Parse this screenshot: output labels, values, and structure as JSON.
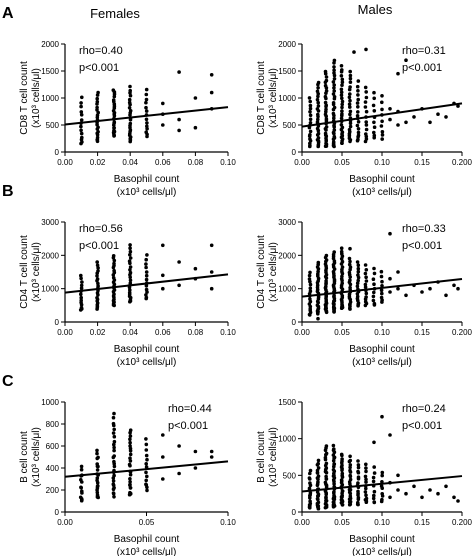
{
  "figure": {
    "column_titles": [
      "Females",
      "Males"
    ],
    "row_labels": [
      "A",
      "B",
      "C"
    ]
  },
  "chart_data": [
    {
      "id": "A-females",
      "type": "scatter",
      "row": "A",
      "col": 0,
      "ylabel": [
        "CD8 T cell count",
        "(x10³ cells/μl)"
      ],
      "xlabel": [
        "Basophil count",
        "(x10³ cells/μl)"
      ],
      "xlim": [
        0,
        0.1
      ],
      "ylim": [
        0,
        2000
      ],
      "xticks": [
        0,
        0.02,
        0.04,
        0.06,
        0.08,
        0.1
      ],
      "xtick_labels": [
        "0.00",
        "0.02",
        "0.04",
        "0.06",
        "0.08",
        "0.10"
      ],
      "yticks": [
        0,
        500,
        1000,
        1500,
        2000
      ],
      "ytick_labels": [
        "0",
        "500",
        "1000",
        "1500",
        "2000"
      ],
      "annotation": [
        "rho=0.40",
        "p<0.001"
      ],
      "annotation_pos": "top-left",
      "regression": {
        "x": [
          0,
          0.1
        ],
        "y": [
          510,
          830
        ]
      },
      "points": {
        "clusters": [
          {
            "x": 0.01,
            "ymin": 150,
            "ymax": 1000,
            "n": 14
          },
          {
            "x": 0.02,
            "ymin": 200,
            "ymax": 1100,
            "n": 22
          },
          {
            "x": 0.03,
            "ymin": 300,
            "ymax": 1150,
            "n": 26
          },
          {
            "x": 0.04,
            "ymin": 200,
            "ymax": 1200,
            "n": 24
          },
          {
            "x": 0.05,
            "ymin": 300,
            "ymax": 1150,
            "n": 14
          }
        ],
        "extra": [
          [
            0.06,
            500
          ],
          [
            0.06,
            700
          ],
          [
            0.06,
            900
          ],
          [
            0.07,
            400
          ],
          [
            0.07,
            600
          ],
          [
            0.07,
            1480
          ],
          [
            0.08,
            450
          ],
          [
            0.08,
            1000
          ],
          [
            0.09,
            1430
          ],
          [
            0.09,
            1100
          ],
          [
            0.09,
            800
          ]
        ]
      }
    },
    {
      "id": "A-males",
      "type": "scatter",
      "row": "A",
      "col": 1,
      "ylabel": [
        "CD8 T cell count",
        "(x10³ cells/μl)"
      ],
      "xlabel": [
        "Basophil count",
        "(x10³ cells/μl)"
      ],
      "xlim": [
        0,
        0.2
      ],
      "ylim": [
        0,
        2000
      ],
      "xticks": [
        0,
        0.05,
        0.1,
        0.15,
        0.2
      ],
      "xtick_labels": [
        "0.00",
        "0.05",
        "0.10",
        "0.15",
        "0.200"
      ],
      "yticks": [
        0,
        500,
        1000,
        1500,
        2000
      ],
      "ytick_labels": [
        "0",
        "500",
        "1000",
        "1500",
        "2000"
      ],
      "annotation": [
        "rho=0.31",
        "p<0.001"
      ],
      "annotation_pos": "top-right",
      "regression": {
        "x": [
          0,
          0.2
        ],
        "y": [
          470,
          900
        ]
      },
      "points": {
        "clusters": [
          {
            "x": 0.01,
            "ymin": 100,
            "ymax": 1000,
            "n": 18
          },
          {
            "x": 0.02,
            "ymin": 100,
            "ymax": 1300,
            "n": 28
          },
          {
            "x": 0.03,
            "ymin": 100,
            "ymax": 1500,
            "n": 34
          },
          {
            "x": 0.04,
            "ymin": 100,
            "ymax": 1700,
            "n": 36
          },
          {
            "x": 0.05,
            "ymin": 150,
            "ymax": 1600,
            "n": 30
          },
          {
            "x": 0.06,
            "ymin": 200,
            "ymax": 1500,
            "n": 24
          },
          {
            "x": 0.07,
            "ymin": 200,
            "ymax": 1300,
            "n": 18
          },
          {
            "x": 0.08,
            "ymin": 200,
            "ymax": 1200,
            "n": 14
          },
          {
            "x": 0.09,
            "ymin": 250,
            "ymax": 1100,
            "n": 10
          },
          {
            "x": 0.1,
            "ymin": 250,
            "ymax": 1050,
            "n": 9
          }
        ],
        "extra": [
          [
            0.11,
            600
          ],
          [
            0.11,
            800
          ],
          [
            0.12,
            500
          ],
          [
            0.12,
            750
          ],
          [
            0.13,
            550
          ],
          [
            0.14,
            650
          ],
          [
            0.15,
            800
          ],
          [
            0.16,
            550
          ],
          [
            0.17,
            700
          ],
          [
            0.18,
            650
          ],
          [
            0.19,
            900
          ],
          [
            0.195,
            850
          ],
          [
            0.12,
            1450
          ],
          [
            0.13,
            1700
          ],
          [
            0.08,
            1900
          ],
          [
            0.065,
            1850
          ]
        ]
      }
    },
    {
      "id": "B-females",
      "type": "scatter",
      "row": "B",
      "col": 0,
      "ylabel": [
        "CD4 T cell count",
        "(x10³ cells/μl)"
      ],
      "xlabel": [
        "Basophil count",
        "(x10³ cells/μl)"
      ],
      "xlim": [
        0,
        0.1
      ],
      "ylim": [
        0,
        3000
      ],
      "xticks": [
        0,
        0.02,
        0.04,
        0.06,
        0.08,
        0.1
      ],
      "xtick_labels": [
        "0.00",
        "0.02",
        "0.04",
        "0.06",
        "0.08",
        "0.10"
      ],
      "yticks": [
        0,
        1000,
        2000,
        3000
      ],
      "ytick_labels": [
        "0",
        "1000",
        "2000",
        "3000"
      ],
      "annotation": [
        "rho=0.56",
        "p<0.001"
      ],
      "annotation_pos": "top-left",
      "regression": {
        "x": [
          0,
          0.1
        ],
        "y": [
          880,
          1430
        ]
      },
      "points": {
        "clusters": [
          {
            "x": 0.01,
            "ymin": 350,
            "ymax": 1400,
            "n": 14
          },
          {
            "x": 0.02,
            "ymin": 400,
            "ymax": 1800,
            "n": 22
          },
          {
            "x": 0.03,
            "ymin": 500,
            "ymax": 2000,
            "n": 26
          },
          {
            "x": 0.04,
            "ymin": 600,
            "ymax": 2300,
            "n": 24
          },
          {
            "x": 0.05,
            "ymin": 700,
            "ymax": 2000,
            "n": 14
          }
        ],
        "extra": [
          [
            0.06,
            1000
          ],
          [
            0.06,
            1400
          ],
          [
            0.06,
            2300
          ],
          [
            0.07,
            1100
          ],
          [
            0.07,
            1800
          ],
          [
            0.08,
            1300
          ],
          [
            0.08,
            1600
          ],
          [
            0.09,
            1000
          ],
          [
            0.09,
            1500
          ],
          [
            0.09,
            2300
          ]
        ]
      }
    },
    {
      "id": "B-males",
      "type": "scatter",
      "row": "B",
      "col": 1,
      "ylabel": [
        "CD4 T cell count",
        "(x10³ cells/μl)"
      ],
      "xlabel": [
        "Basophil count",
        "(x10³ cells/μl)"
      ],
      "xlim": [
        0,
        0.2
      ],
      "ylim": [
        0,
        3000
      ],
      "xticks": [
        0,
        0.05,
        0.1,
        0.15,
        0.2
      ],
      "xtick_labels": [
        "0.00",
        "0.05",
        "0.10",
        "0.15",
        "0.200"
      ],
      "yticks": [
        0,
        1000,
        2000,
        3000
      ],
      "ytick_labels": [
        "0",
        "1000",
        "2000",
        "3000"
      ],
      "annotation": [
        "rho=0.33",
        "p<0.001"
      ],
      "annotation_pos": "top-right",
      "regression": {
        "x": [
          0,
          0.2
        ],
        "y": [
          760,
          1290
        ]
      },
      "points": {
        "clusters": [
          {
            "x": 0.01,
            "ymin": 200,
            "ymax": 1500,
            "n": 18
          },
          {
            "x": 0.02,
            "ymin": 250,
            "ymax": 1800,
            "n": 28
          },
          {
            "x": 0.03,
            "ymin": 300,
            "ymax": 2000,
            "n": 34
          },
          {
            "x": 0.04,
            "ymin": 300,
            "ymax": 2100,
            "n": 36
          },
          {
            "x": 0.05,
            "ymin": 400,
            "ymax": 2200,
            "n": 30
          },
          {
            "x": 0.06,
            "ymin": 400,
            "ymax": 1900,
            "n": 24
          },
          {
            "x": 0.07,
            "ymin": 500,
            "ymax": 1800,
            "n": 18
          },
          {
            "x": 0.08,
            "ymin": 500,
            "ymax": 1700,
            "n": 14
          },
          {
            "x": 0.09,
            "ymin": 500,
            "ymax": 1600,
            "n": 10
          },
          {
            "x": 0.1,
            "ymin": 600,
            "ymax": 1500,
            "n": 9
          }
        ],
        "extra": [
          [
            0.11,
            900
          ],
          [
            0.11,
            1300
          ],
          [
            0.12,
            1000
          ],
          [
            0.12,
            1500
          ],
          [
            0.13,
            800
          ],
          [
            0.14,
            1100
          ],
          [
            0.15,
            900
          ],
          [
            0.16,
            1000
          ],
          [
            0.17,
            1200
          ],
          [
            0.18,
            800
          ],
          [
            0.19,
            1100
          ],
          [
            0.195,
            1000
          ],
          [
            0.11,
            2650
          ],
          [
            0.06,
            2200
          ],
          [
            0.02,
            100
          ]
        ]
      }
    },
    {
      "id": "C-females",
      "type": "scatter",
      "row": "C",
      "col": 0,
      "ylabel": [
        "B cell count",
        "(x10³ cells/μl)"
      ],
      "xlabel": [
        "Basophil count",
        "(x10³ cells/μl)"
      ],
      "xlim": [
        0,
        0.1
      ],
      "ylim": [
        0,
        1000
      ],
      "xticks": [
        0,
        0.05,
        0.1
      ],
      "xtick_labels": [
        "0.00",
        "0.05",
        "0.10"
      ],
      "yticks": [
        0,
        200,
        400,
        600,
        800,
        1000
      ],
      "ytick_labels": [
        "0",
        "200",
        "400",
        "600",
        "800",
        "1000"
      ],
      "annotation": [
        "rho=0.44",
        "p<0.001"
      ],
      "annotation_pos": "top-right",
      "regression": {
        "x": [
          0,
          0.1
        ],
        "y": [
          320,
          460
        ]
      },
      "points": {
        "clusters": [
          {
            "x": 0.01,
            "ymin": 100,
            "ymax": 400,
            "n": 14
          },
          {
            "x": 0.02,
            "ymin": 130,
            "ymax": 550,
            "n": 22
          },
          {
            "x": 0.03,
            "ymin": 150,
            "ymax": 880,
            "n": 28
          },
          {
            "x": 0.04,
            "ymin": 150,
            "ymax": 750,
            "n": 26
          },
          {
            "x": 0.05,
            "ymin": 200,
            "ymax": 650,
            "n": 14
          }
        ],
        "extra": [
          [
            0.06,
            300
          ],
          [
            0.06,
            500
          ],
          [
            0.06,
            700
          ],
          [
            0.07,
            350
          ],
          [
            0.07,
            600
          ],
          [
            0.08,
            400
          ],
          [
            0.08,
            550
          ],
          [
            0.09,
            500
          ],
          [
            0.09,
            550
          ]
        ]
      }
    },
    {
      "id": "C-males",
      "type": "scatter",
      "row": "C",
      "col": 1,
      "ylabel": [
        "B cell count",
        "(x10³ cells/μl)"
      ],
      "xlabel": [
        "Basophil count",
        "(x10³ cells/μl)"
      ],
      "xlim": [
        0,
        0.2
      ],
      "ylim": [
        0,
        1500
      ],
      "xticks": [
        0,
        0.05,
        0.1,
        0.15,
        0.2
      ],
      "xtick_labels": [
        "0.00",
        "0.05",
        "0.10",
        "0.15",
        "0.200"
      ],
      "yticks": [
        0,
        500,
        1000,
        1500
      ],
      "ytick_labels": [
        "0",
        "500",
        "1000",
        "1500"
      ],
      "annotation": [
        "rho=0.24",
        "p<0.001"
      ],
      "annotation_pos": "top-right",
      "regression": {
        "x": [
          0,
          0.2
        ],
        "y": [
          280,
          490
        ]
      },
      "points": {
        "clusters": [
          {
            "x": 0.01,
            "ymin": 50,
            "ymax": 550,
            "n": 18
          },
          {
            "x": 0.02,
            "ymin": 50,
            "ymax": 700,
            "n": 28
          },
          {
            "x": 0.03,
            "ymin": 50,
            "ymax": 900,
            "n": 34
          },
          {
            "x": 0.04,
            "ymin": 80,
            "ymax": 900,
            "n": 36
          },
          {
            "x": 0.05,
            "ymin": 100,
            "ymax": 800,
            "n": 30
          },
          {
            "x": 0.06,
            "ymin": 100,
            "ymax": 750,
            "n": 24
          },
          {
            "x": 0.07,
            "ymin": 100,
            "ymax": 700,
            "n": 18
          },
          {
            "x": 0.08,
            "ymin": 120,
            "ymax": 650,
            "n": 14
          },
          {
            "x": 0.09,
            "ymin": 120,
            "ymax": 600,
            "n": 10
          },
          {
            "x": 0.1,
            "ymin": 150,
            "ymax": 550,
            "n": 9
          }
        ],
        "extra": [
          [
            0.11,
            200
          ],
          [
            0.11,
            400
          ],
          [
            0.12,
            300
          ],
          [
            0.12,
            500
          ],
          [
            0.13,
            250
          ],
          [
            0.14,
            350
          ],
          [
            0.15,
            200
          ],
          [
            0.16,
            300
          ],
          [
            0.17,
            250
          ],
          [
            0.18,
            350
          ],
          [
            0.19,
            200
          ],
          [
            0.195,
            150
          ],
          [
            0.1,
            1300
          ],
          [
            0.11,
            1050
          ],
          [
            0.09,
            950
          ]
        ]
      }
    }
  ]
}
